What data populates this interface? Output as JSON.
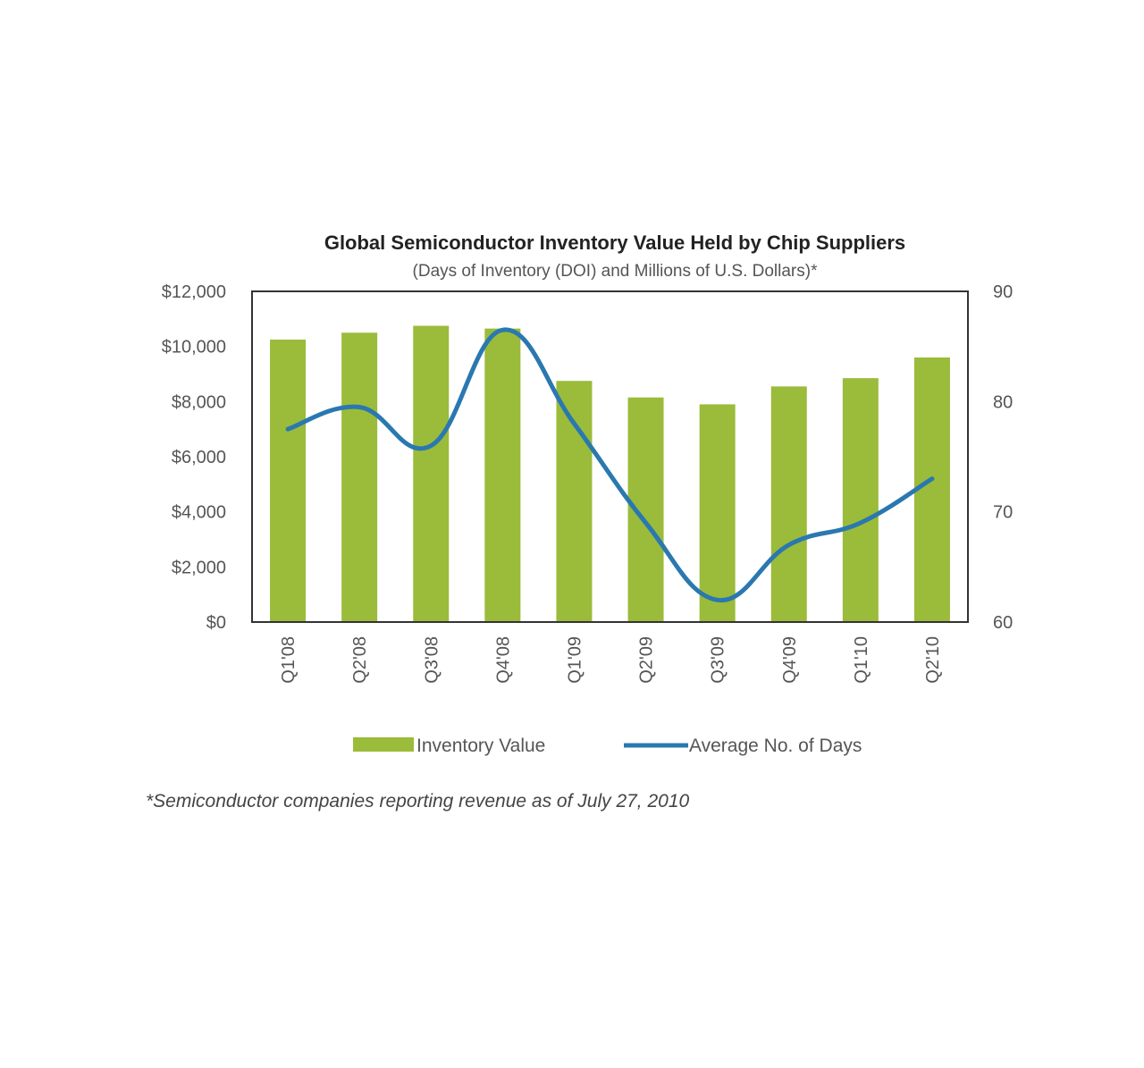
{
  "chart_data": {
    "type": "bar",
    "title": "Global Semiconductor Inventory Value Held by Chip Suppliers",
    "subtitle": "(Days of Inventory (DOI) and Millions of U.S. Dollars)*",
    "categories": [
      "Q1'08",
      "Q2'08",
      "Q3'08",
      "Q4'08",
      "Q1'09",
      "Q2'09",
      "Q3'09",
      "Q4'09",
      "Q1'10",
      "Q2'10"
    ],
    "series": [
      {
        "name": "Inventory Value",
        "type": "bar",
        "axis": "left",
        "color": "#9bbb3b",
        "values": [
          10250,
          10500,
          10750,
          10650,
          8750,
          8150,
          7900,
          8550,
          8850,
          9600
        ]
      },
      {
        "name": "Average No. of Days",
        "type": "line",
        "axis": "right",
        "color": "#2a78b0",
        "values": [
          77.5,
          79.5,
          76,
          86.5,
          78,
          69,
          62,
          67,
          69,
          73
        ]
      }
    ],
    "y_left": {
      "ylim": [
        0,
        12000
      ],
      "ticks": [
        0,
        2000,
        4000,
        6000,
        8000,
        10000,
        12000
      ],
      "tick_labels": [
        "$0",
        "$2,000",
        "$4,000",
        "$6,000",
        "$8,000",
        "$10,000",
        "$12,000"
      ]
    },
    "y_right": {
      "ylim": [
        60,
        90
      ],
      "ticks": [
        60,
        70,
        80,
        90
      ],
      "tick_labels": [
        "60",
        "70",
        "80",
        "90"
      ]
    },
    "grid": false,
    "legend_position": "bottom",
    "footnote": "*Semiconductor companies reporting revenue as of July 27, 2010"
  }
}
